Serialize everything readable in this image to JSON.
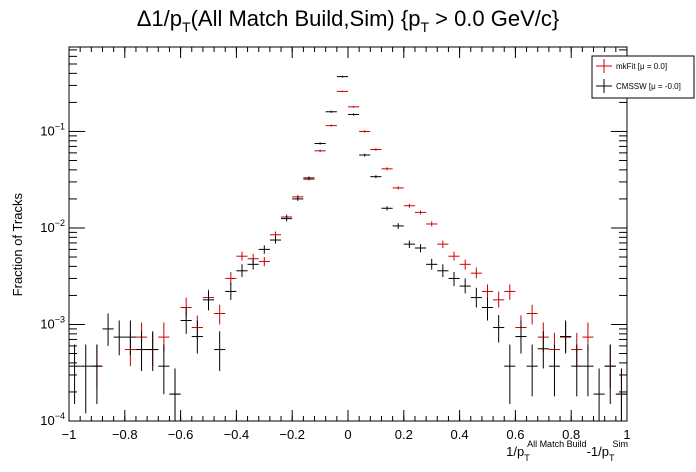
{
  "chart_data": {
    "type": "scatter",
    "title": {
      "prefix": "Δ1/p",
      "prefix_sub": "T",
      "middle": "(All Match Build,Sim) {p",
      "middle_sub": "T",
      "suffix": " > 0.0 GeV/c}"
    },
    "ylabel": "Fraction of Tracks",
    "xlabel": {
      "part1": "1/p",
      "part1_sub": "T",
      "part1_sup": "All Match Build",
      "part2": "-1/p",
      "part2_sub": "T",
      "part2_sup": "Sim"
    },
    "xlim": [
      -1,
      1
    ],
    "ylim": [
      0.0001,
      0.75
    ],
    "yscale": "log",
    "grid": false,
    "legend_position": "top-right",
    "x_ticks": [
      "−1",
      "−0.8",
      "−0.6",
      "−0.4",
      "−0.2",
      "0",
      "0.2",
      "0.4",
      "0.6",
      "0.8",
      "1"
    ],
    "x_tick_values": [
      -1,
      -0.8,
      -0.6,
      -0.4,
      -0.2,
      0,
      0.2,
      0.4,
      0.6,
      0.8,
      1
    ],
    "y_ticks": [
      {
        "base": "10",
        "exp": "−4",
        "value": 0.0001
      },
      {
        "base": "10",
        "exp": "−3",
        "value": 0.001
      },
      {
        "base": "10",
        "exp": "−2",
        "value": 0.01
      },
      {
        "base": "10",
        "exp": "−1",
        "value": 0.1
      }
    ],
    "bin_half_width": 0.02,
    "series": [
      {
        "name": "mkFit",
        "legend_label": "mkFit  [μ = 0.0]",
        "color": "#cc0000",
        "points": [
          {
            "x": -0.9,
            "y": 0.00037,
            "lo": 0.00022,
            "hi": 0.00062
          },
          {
            "x": -0.78,
            "y": 0.00055,
            "lo": 0.00037,
            "hi": 0.00082
          },
          {
            "x": -0.74,
            "y": 0.00074,
            "lo": 0.00052,
            "hi": 0.00105
          },
          {
            "x": -0.7,
            "y": 0.00055,
            "lo": 0.00037,
            "hi": 0.00082
          },
          {
            "x": -0.66,
            "y": 0.00074,
            "lo": 0.00052,
            "hi": 0.00105
          },
          {
            "x": -0.62,
            "y": 0.00019,
            "lo": 0.0001,
            "hi": 0.00035
          },
          {
            "x": -0.58,
            "y": 0.0015,
            "lo": 0.0012,
            "hi": 0.0019
          },
          {
            "x": -0.54,
            "y": 0.00093,
            "lo": 0.0007,
            "hi": 0.00124
          },
          {
            "x": -0.5,
            "y": 0.0019,
            "lo": 0.0016,
            "hi": 0.0023
          },
          {
            "x": -0.46,
            "y": 0.0013,
            "lo": 0.001,
            "hi": 0.0016
          },
          {
            "x": -0.42,
            "y": 0.003,
            "lo": 0.0026,
            "hi": 0.0035
          },
          {
            "x": -0.38,
            "y": 0.0051,
            "lo": 0.0046,
            "hi": 0.0057
          },
          {
            "x": -0.34,
            "y": 0.0048,
            "lo": 0.0043,
            "hi": 0.0054
          },
          {
            "x": -0.3,
            "y": 0.0045,
            "lo": 0.004,
            "hi": 0.005
          },
          {
            "x": -0.26,
            "y": 0.0085,
            "lo": 0.0079,
            "hi": 0.0092
          },
          {
            "x": -0.22,
            "y": 0.013,
            "lo": 0.0123,
            "hi": 0.0138
          },
          {
            "x": -0.18,
            "y": 0.021,
            "lo": 0.0201,
            "hi": 0.022
          },
          {
            "x": -0.14,
            "y": 0.032,
            "lo": 0.031,
            "hi": 0.033
          },
          {
            "x": -0.1,
            "y": 0.063,
            "lo": 0.061,
            "hi": 0.065
          },
          {
            "x": -0.06,
            "y": 0.115,
            "lo": 0.112,
            "hi": 0.118
          },
          {
            "x": -0.02,
            "y": 0.26,
            "lo": 0.255,
            "hi": 0.265
          },
          {
            "x": 0.02,
            "y": 0.18,
            "lo": 0.176,
            "hi": 0.184
          },
          {
            "x": 0.06,
            "y": 0.1,
            "lo": 0.097,
            "hi": 0.103
          },
          {
            "x": 0.1,
            "y": 0.065,
            "lo": 0.063,
            "hi": 0.067
          },
          {
            "x": 0.14,
            "y": 0.041,
            "lo": 0.0395,
            "hi": 0.0425
          },
          {
            "x": 0.18,
            "y": 0.026,
            "lo": 0.025,
            "hi": 0.027
          },
          {
            "x": 0.22,
            "y": 0.017,
            "lo": 0.0162,
            "hi": 0.0178
          },
          {
            "x": 0.26,
            "y": 0.0145,
            "lo": 0.0138,
            "hi": 0.0152
          },
          {
            "x": 0.3,
            "y": 0.011,
            "lo": 0.0104,
            "hi": 0.0117
          },
          {
            "x": 0.34,
            "y": 0.0068,
            "lo": 0.0062,
            "hi": 0.0074
          },
          {
            "x": 0.38,
            "y": 0.0051,
            "lo": 0.0046,
            "hi": 0.0057
          },
          {
            "x": 0.42,
            "y": 0.0042,
            "lo": 0.0037,
            "hi": 0.0047
          },
          {
            "x": 0.46,
            "y": 0.0034,
            "lo": 0.003,
            "hi": 0.0039
          },
          {
            "x": 0.5,
            "y": 0.0022,
            "lo": 0.0018,
            "hi": 0.0026
          },
          {
            "x": 0.54,
            "y": 0.0018,
            "lo": 0.0015,
            "hi": 0.0022
          },
          {
            "x": 0.58,
            "y": 0.0022,
            "lo": 0.0018,
            "hi": 0.0026
          },
          {
            "x": 0.62,
            "y": 0.00093,
            "lo": 0.0007,
            "hi": 0.00124
          },
          {
            "x": 0.66,
            "y": 0.0013,
            "lo": 0.001,
            "hi": 0.0016
          },
          {
            "x": 0.7,
            "y": 0.00074,
            "lo": 0.00052,
            "hi": 0.00105
          },
          {
            "x": 0.74,
            "y": 0.00055,
            "lo": 0.00037,
            "hi": 0.00082
          },
          {
            "x": 0.78,
            "y": 0.00074,
            "lo": 0.00052,
            "hi": 0.00105
          },
          {
            "x": 0.82,
            "y": 0.00055,
            "lo": 0.00037,
            "hi": 0.00082
          },
          {
            "x": 0.86,
            "y": 0.00074,
            "lo": 0.00052,
            "hi": 0.00105
          },
          {
            "x": 0.94,
            "y": 0.00037,
            "lo": 0.00022,
            "hi": 0.00062
          },
          {
            "x": 0.98,
            "y": 0.00019,
            "lo": 0.0001,
            "hi": 0.00035
          }
        ]
      },
      {
        "name": "CMSSW",
        "legend_label": "CMSSW  [μ = -0.0]",
        "color": "#000000",
        "points": [
          {
            "x": -0.98,
            "y": 0.00037,
            "lo": 0.00015,
            "hi": 0.00062
          },
          {
            "x": -0.94,
            "y": 0.00037,
            "lo": 0.00012,
            "hi": 0.00062
          },
          {
            "x": -0.9,
            "y": 0.00037,
            "lo": 0.00015,
            "hi": 0.00062
          },
          {
            "x": -0.86,
            "y": 0.0009,
            "lo": 0.0006,
            "hi": 0.0013
          },
          {
            "x": -0.82,
            "y": 0.00074,
            "lo": 0.00048,
            "hi": 0.0011
          },
          {
            "x": -0.78,
            "y": 0.00074,
            "lo": 0.00048,
            "hi": 0.0011
          },
          {
            "x": -0.74,
            "y": 0.00055,
            "lo": 0.00033,
            "hi": 0.00085
          },
          {
            "x": -0.7,
            "y": 0.00055,
            "lo": 0.00033,
            "hi": 0.00085
          },
          {
            "x": -0.66,
            "y": 0.00037,
            "lo": 0.00019,
            "hi": 0.00062
          },
          {
            "x": -0.62,
            "y": 0.00019,
            "lo": 8e-05,
            "hi": 0.00035
          },
          {
            "x": -0.58,
            "y": 0.0011,
            "lo": 0.0008,
            "hi": 0.0015
          },
          {
            "x": -0.54,
            "y": 0.00075,
            "lo": 0.0005,
            "hi": 0.0011
          },
          {
            "x": -0.5,
            "y": 0.0018,
            "lo": 0.0014,
            "hi": 0.0022
          },
          {
            "x": -0.46,
            "y": 0.00055,
            "lo": 0.00033,
            "hi": 0.00085
          },
          {
            "x": -0.42,
            "y": 0.0022,
            "lo": 0.0018,
            "hi": 0.0027
          },
          {
            "x": -0.38,
            "y": 0.0036,
            "lo": 0.0031,
            "hi": 0.0042
          },
          {
            "x": -0.34,
            "y": 0.0042,
            "lo": 0.0037,
            "hi": 0.0048
          },
          {
            "x": -0.3,
            "y": 0.006,
            "lo": 0.0054,
            "hi": 0.0066
          },
          {
            "x": -0.26,
            "y": 0.0075,
            "lo": 0.0069,
            "hi": 0.0082
          },
          {
            "x": -0.22,
            "y": 0.0125,
            "lo": 0.0117,
            "hi": 0.0133
          },
          {
            "x": -0.18,
            "y": 0.02,
            "lo": 0.0191,
            "hi": 0.021
          },
          {
            "x": -0.14,
            "y": 0.033,
            "lo": 0.0318,
            "hi": 0.0342
          },
          {
            "x": -0.1,
            "y": 0.075,
            "lo": 0.073,
            "hi": 0.077
          },
          {
            "x": -0.06,
            "y": 0.16,
            "lo": 0.156,
            "hi": 0.164
          },
          {
            "x": -0.02,
            "y": 0.37,
            "lo": 0.362,
            "hi": 0.378
          },
          {
            "x": 0.02,
            "y": 0.15,
            "lo": 0.146,
            "hi": 0.154
          },
          {
            "x": 0.06,
            "y": 0.057,
            "lo": 0.055,
            "hi": 0.059
          },
          {
            "x": 0.1,
            "y": 0.034,
            "lo": 0.0328,
            "hi": 0.0352
          },
          {
            "x": 0.14,
            "y": 0.016,
            "lo": 0.0152,
            "hi": 0.0168
          },
          {
            "x": 0.18,
            "y": 0.0105,
            "lo": 0.0098,
            "hi": 0.0112
          },
          {
            "x": 0.22,
            "y": 0.0068,
            "lo": 0.0062,
            "hi": 0.0074
          },
          {
            "x": 0.26,
            "y": 0.0062,
            "lo": 0.0056,
            "hi": 0.0068
          },
          {
            "x": 0.3,
            "y": 0.0042,
            "lo": 0.0037,
            "hi": 0.0048
          },
          {
            "x": 0.34,
            "y": 0.0036,
            "lo": 0.0031,
            "hi": 0.0042
          },
          {
            "x": 0.38,
            "y": 0.003,
            "lo": 0.0025,
            "hi": 0.0035
          },
          {
            "x": 0.42,
            "y": 0.0025,
            "lo": 0.0021,
            "hi": 0.003
          },
          {
            "x": 0.46,
            "y": 0.0019,
            "lo": 0.0015,
            "hi": 0.0024
          },
          {
            "x": 0.5,
            "y": 0.0015,
            "lo": 0.0011,
            "hi": 0.0019
          },
          {
            "x": 0.54,
            "y": 0.00093,
            "lo": 0.00065,
            "hi": 0.00125
          },
          {
            "x": 0.58,
            "y": 0.00037,
            "lo": 0.00015,
            "hi": 0.00062
          },
          {
            "x": 0.62,
            "y": 0.00075,
            "lo": 0.0005,
            "hi": 0.0011
          },
          {
            "x": 0.66,
            "y": 0.00037,
            "lo": 0.00018,
            "hi": 0.00062
          },
          {
            "x": 0.7,
            "y": 0.00056,
            "lo": 0.00035,
            "hi": 0.00085
          },
          {
            "x": 0.74,
            "y": 0.00037,
            "lo": 0.00018,
            "hi": 0.00062
          },
          {
            "x": 0.78,
            "y": 0.00075,
            "lo": 0.0005,
            "hi": 0.0011
          },
          {
            "x": 0.82,
            "y": 0.00037,
            "lo": 0.00018,
            "hi": 0.00062
          },
          {
            "x": 0.86,
            "y": 0.00037,
            "lo": 0.00018,
            "hi": 0.00062
          },
          {
            "x": 0.9,
            "y": 0.00019,
            "lo": 8e-05,
            "hi": 0.00035
          },
          {
            "x": 0.94,
            "y": 0.00037,
            "lo": 0.00015,
            "hi": 0.00062
          },
          {
            "x": 0.98,
            "y": 0.00019,
            "lo": 8e-05,
            "hi": 0.00035
          }
        ]
      }
    ]
  }
}
